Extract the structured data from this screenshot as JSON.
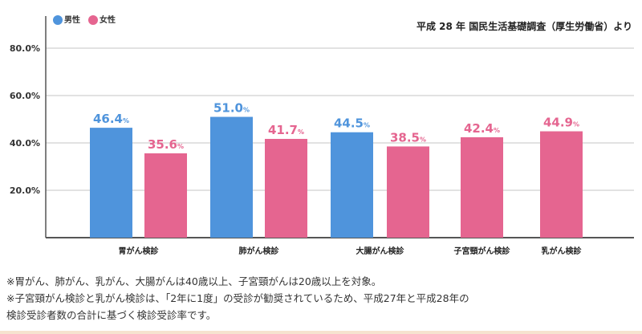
{
  "chart_data": {
    "type": "bar",
    "categories": [
      "胃がん検診",
      "肺がん検診",
      "大腸がん検診",
      "子宮頸がん検診",
      "乳がん検診"
    ],
    "series": [
      {
        "name": "男性",
        "color": "#4f94dc",
        "values": [
          46.4,
          51.0,
          44.5,
          null,
          null
        ]
      },
      {
        "name": "女性",
        "color": "#e56590",
        "values": [
          35.6,
          41.7,
          38.5,
          42.4,
          44.9
        ]
      }
    ],
    "value_suffix": "%",
    "yticks": [
      "20.0%",
      "40.0%",
      "60.0%",
      "80.0%"
    ],
    "ytick_values": [
      20,
      40,
      60,
      80
    ],
    "ylim": [
      0,
      90
    ],
    "grid": true,
    "legend": "top-left",
    "source": "平成 28 年 国民生活基礎調査（厚生労働省）より"
  },
  "notes": [
    "※胃がん、肺がん、乳がん、大腸がんは40歳以上、子宮頸がんは20歳以上を対象。",
    "※子宮頸がん検診と乳がん検診は、「2年に1度」の受診が勧奨されているため、平成27年と平成28年の",
    "検診受診者数の合計に基づく検診受診率です。"
  ]
}
